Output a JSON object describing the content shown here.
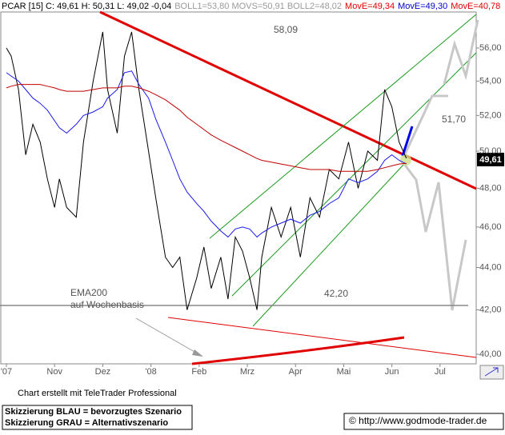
{
  "chart_data": {
    "type": "line",
    "log_scale": true,
    "header": [
      {
        "text": "PCAR [15] C: 49,61 H: 50,31 L: 49,02 -0,04",
        "color": "#000000"
      },
      {
        "text": "BOLL1=53,80 MOVS=50,91 BOLL2=48,02",
        "color": "#9a9a9a"
      },
      {
        "text": "MovE=49,34",
        "color": "#e00000"
      },
      {
        "text": "MovE=49,30",
        "color": "#0000cc"
      },
      {
        "text": "MovE=40,78",
        "color": "#e00000"
      }
    ],
    "x": [
      0.0,
      0.1,
      0.25,
      0.4,
      0.55,
      0.7,
      0.85,
      1.0,
      1.1,
      1.25,
      1.45,
      1.6,
      1.8,
      2.0,
      2.1,
      2.3,
      2.45,
      2.6,
      2.75,
      2.95,
      3.1,
      3.3,
      3.45,
      3.6,
      3.75,
      3.95,
      4.1,
      4.25,
      4.45,
      4.6,
      4.75,
      4.9,
      5.05,
      5.2,
      5.3,
      5.5,
      5.7,
      5.9,
      6.1,
      6.3,
      6.5,
      6.7,
      6.9,
      7.1,
      7.3,
      7.5,
      7.7,
      7.85,
      8.0,
      8.15,
      8.3
    ],
    "series": [
      {
        "color": "#000000",
        "values": [
          56.0,
          55.5,
          53.5,
          49.8,
          51.5,
          50.5,
          48.5,
          47.0,
          48.5,
          47.0,
          46.5,
          50.5,
          54.0,
          57.0,
          53.5,
          51.0,
          55.5,
          57.0,
          53.5,
          50.0,
          47.5,
          44.5,
          44.0,
          44.5,
          42.0,
          43.5,
          45.0,
          43.0,
          44.5,
          42.5,
          45.5,
          44.8,
          43.5,
          42.0,
          44.5,
          47.0,
          45.5,
          47.0,
          44.5,
          47.5,
          46.5,
          49.0,
          48.5,
          50.5,
          48.0,
          50.0,
          49.5,
          53.5,
          52.5,
          50.5,
          49.61
        ]
      },
      {
        "color": "#1a1aee",
        "values": [
          54.5,
          54.3,
          54.0,
          53.5,
          53.0,
          52.7,
          52.3,
          51.7,
          51.3,
          51.0,
          51.5,
          52.0,
          52.2,
          52.5,
          53.0,
          53.5,
          54.5,
          54.6,
          53.8,
          53.0,
          51.8,
          50.5,
          49.5,
          48.5,
          47.8,
          47.2,
          46.8,
          46.3,
          45.8,
          45.5,
          45.9,
          46.0,
          45.9,
          45.5,
          45.7,
          46.0,
          46.2,
          46.4,
          46.2,
          46.6,
          46.8,
          47.2,
          47.5,
          48.5,
          48.3,
          48.5,
          48.9,
          49.5,
          49.8,
          49.5,
          49.3
        ]
      },
      {
        "color": "#c00000",
        "values": [
          53.6,
          53.7,
          53.8,
          53.8,
          53.8,
          53.8,
          53.7,
          53.6,
          53.5,
          53.4,
          53.4,
          53.4,
          53.5,
          53.6,
          53.6,
          53.6,
          53.7,
          53.7,
          53.6,
          53.4,
          53.2,
          52.9,
          52.6,
          52.3,
          51.9,
          51.5,
          51.2,
          50.9,
          50.6,
          50.4,
          50.2,
          50.0,
          49.8,
          49.6,
          49.5,
          49.4,
          49.3,
          49.2,
          49.1,
          49.0,
          49.0,
          49.0,
          48.9,
          48.9,
          48.9,
          48.9,
          49.0,
          49.1,
          49.2,
          49.3,
          49.34
        ]
      }
    ],
    "price_tag": "49,61",
    "hline": {
      "value": 42.2,
      "label": "42,20"
    },
    "annotations": [
      "58,09",
      "51,70",
      "EMA200",
      "auf Wochenbasis"
    ],
    "xlim": [
      -0.133,
      9.75
    ],
    "xticks": [
      {
        "value": 0,
        "label": "'07"
      },
      {
        "value": 1,
        "label": "Nov"
      },
      {
        "value": 2,
        "label": "Dez"
      },
      {
        "value": 3,
        "label": "'08"
      },
      {
        "value": 4,
        "label": "Feb"
      },
      {
        "value": 5,
        "label": "Mrz"
      },
      {
        "value": 6,
        "label": "Apr"
      },
      {
        "value": 7,
        "label": "Mai"
      },
      {
        "value": 8,
        "label": "Jun"
      },
      {
        "value": 9,
        "label": "Jul"
      }
    ],
    "ylim": [
      39.58,
      58.26
    ],
    "yticks": [
      {
        "value": 40,
        "label": "40,00"
      },
      {
        "value": 42,
        "label": "42,00"
      },
      {
        "value": 44,
        "label": "44,00"
      },
      {
        "value": 46,
        "label": "46,00"
      },
      {
        "value": 48,
        "label": "48,00"
      },
      {
        "value": 50,
        "label": "50,00"
      },
      {
        "value": 52,
        "label": "52,00"
      },
      {
        "value": 54,
        "label": "54,00"
      },
      {
        "value": 56,
        "label": "56,00"
      }
    ],
    "footer": {
      "credit": "Chart erstellt mit TeleTrader Professional",
      "legend": [
        "Skizzierung BLAU = bevorzugtes Szenario",
        "Skizzierung GRAU = Alternativszenario"
      ],
      "copyright": "© http://www.godmode-trader.de"
    }
  }
}
